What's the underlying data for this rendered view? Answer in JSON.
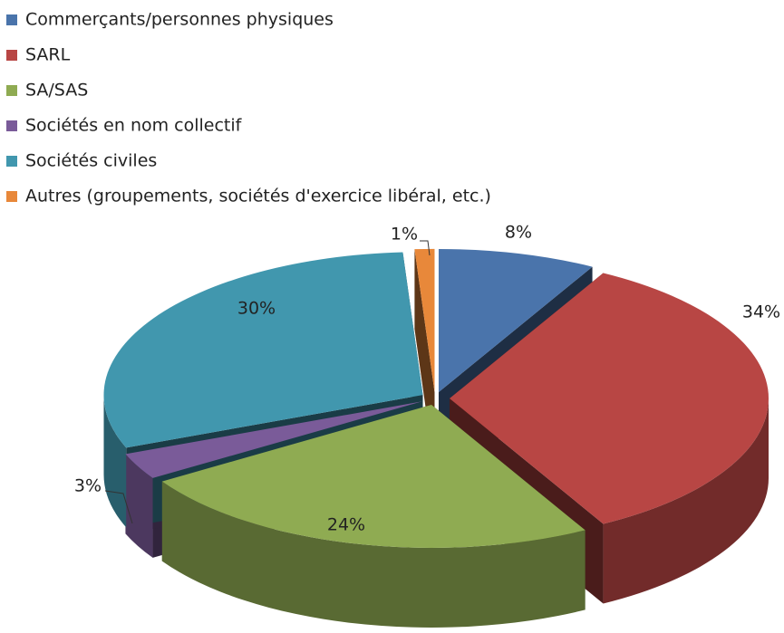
{
  "chart_data": {
    "type": "pie3d",
    "categories": [
      "Commerçants/personnes physiques",
      "SARL",
      "SA/SAS",
      "Sociétés en nom collectif",
      "Sociétés civiles",
      "Autres (groupements, sociétés d'exercice libéral, etc.)"
    ],
    "values": [
      8,
      34,
      24,
      3,
      30,
      1
    ],
    "value_labels": [
      "8%",
      "34%",
      "24%",
      "3%",
      "30%",
      "1%"
    ],
    "colors": [
      "#4a74ab",
      "#b84644",
      "#8fab52",
      "#7a5b99",
      "#4197ae",
      "#e8883a"
    ],
    "legend": "top-left"
  }
}
